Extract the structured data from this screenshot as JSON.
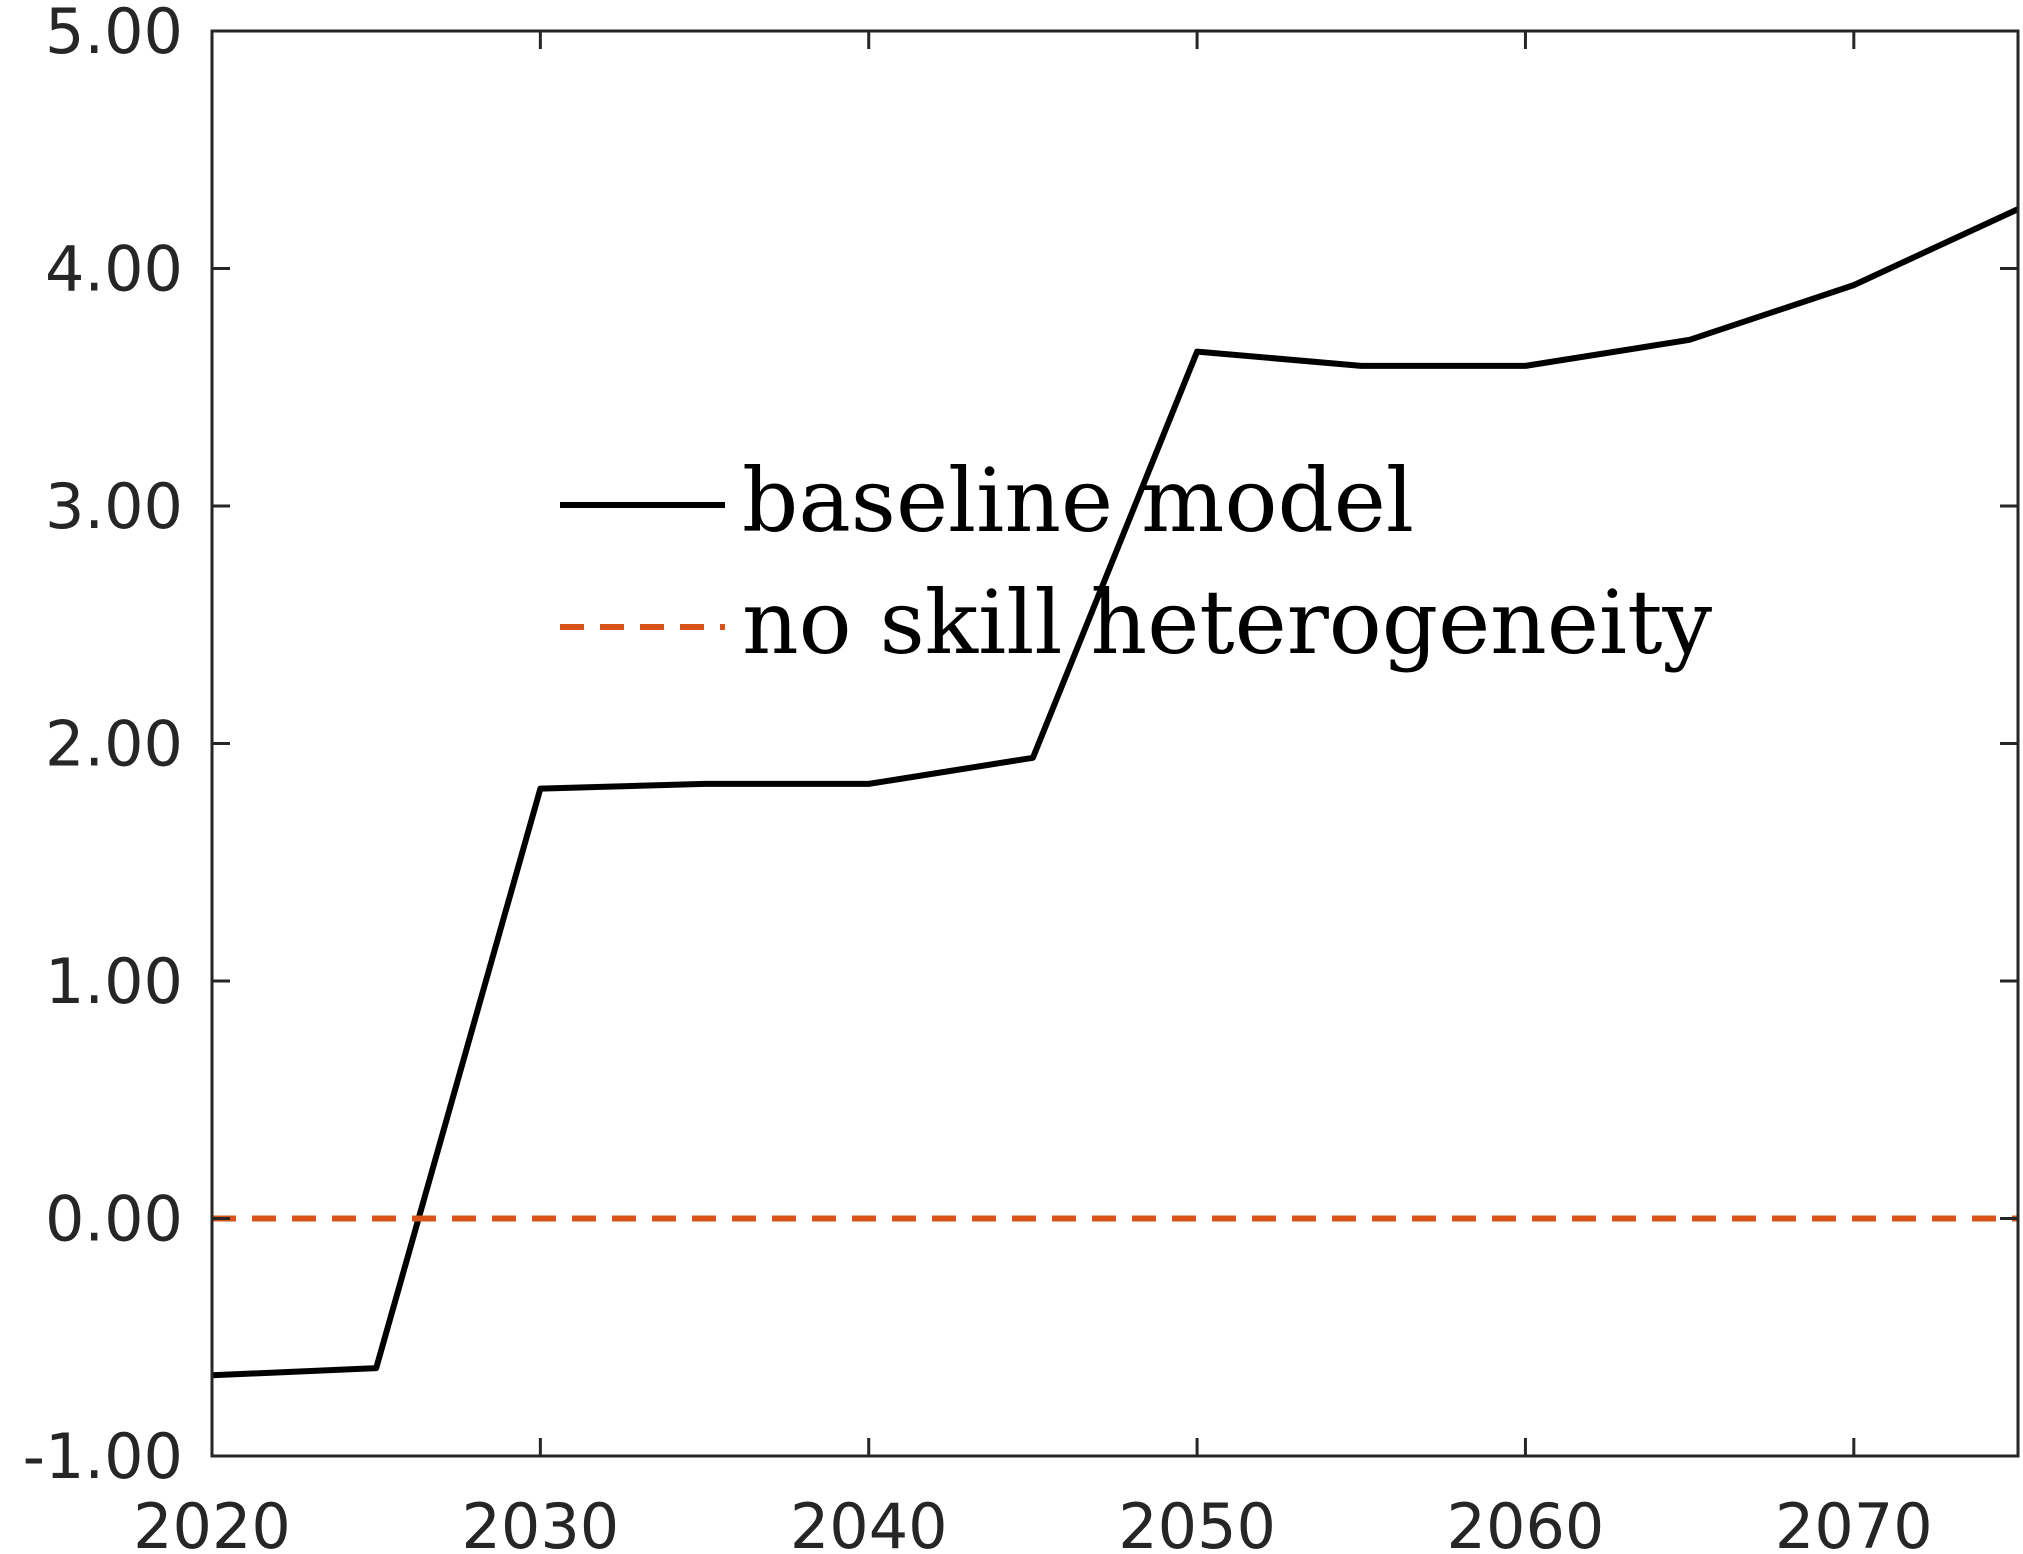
{
  "chart_data": {
    "type": "line",
    "title": "",
    "xlabel": "",
    "ylabel": "",
    "xlim": [
      2020,
      2075
    ],
    "ylim": [
      -1.0,
      5.0
    ],
    "x_ticks": [
      2020,
      2030,
      2040,
      2050,
      2060,
      2070
    ],
    "x_tick_labels": [
      "2020",
      "2030",
      "2040",
      "2050",
      "2060",
      "2070"
    ],
    "y_ticks": [
      -1,
      0,
      1,
      2,
      3,
      4,
      5
    ],
    "y_tick_labels": [
      "-1.00",
      "0.00",
      "1.00",
      "2.00",
      "3.00",
      "4.00",
      "5.00"
    ],
    "grid": false,
    "legend_position": "center",
    "x": [
      2020,
      2025,
      2030,
      2035,
      2040,
      2045,
      2050,
      2055,
      2060,
      2065,
      2070,
      2075
    ],
    "series": [
      {
        "name": "baseline model",
        "color": "#000000",
        "dash": "solid",
        "values": [
          -0.66,
          -0.63,
          1.81,
          1.83,
          1.83,
          1.94,
          3.65,
          3.59,
          3.59,
          3.7,
          3.93,
          4.25
        ]
      },
      {
        "name": "no skill heterogeneity",
        "color": "#D95319",
        "dash": "dashed",
        "values": [
          0,
          0,
          0,
          0,
          0,
          0,
          0,
          0,
          0,
          0,
          0,
          0
        ]
      }
    ]
  }
}
